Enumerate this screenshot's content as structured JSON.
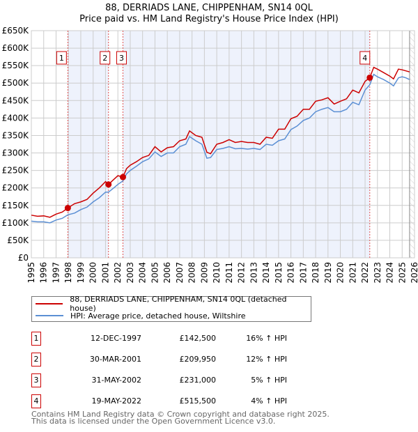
{
  "chart_data": {
    "type": "line",
    "title": "88, DERRIADS LANE, CHIPPENHAM, SN14 0QL",
    "subtitle": "Price paid vs. HM Land Registry's House Price Index (HPI)",
    "xlim": [
      1995,
      2026
    ],
    "ylim": [
      0,
      650000
    ],
    "y_ticks": [
      "£0",
      "£50K",
      "£100K",
      "£150K",
      "£200K",
      "£250K",
      "£300K",
      "£350K",
      "£400K",
      "£450K",
      "£500K",
      "£550K",
      "£600K",
      "£650K"
    ],
    "x_ticks": [
      "1995",
      "1996",
      "1997",
      "1998",
      "1999",
      "2000",
      "2001",
      "2002",
      "2003",
      "2004",
      "2005",
      "2006",
      "2007",
      "2008",
      "2009",
      "2010",
      "2011",
      "2012",
      "2013",
      "2014",
      "2015",
      "2016",
      "2017",
      "2018",
      "2019",
      "2020",
      "2021",
      "2022",
      "2023",
      "2024",
      "2025",
      "2026"
    ],
    "grid": true,
    "series": [
      {
        "name": "88, DERRIADS LANE, CHIPPENHAM, SN14 0QL (detached house)",
        "color": "#cc0000",
        "x": [
          1995,
          1995.5,
          1996,
          1996.5,
          1997,
          1997.5,
          1997.95,
          1998.5,
          1999,
          1999.5,
          2000,
          2000.5,
          2001,
          2001.24,
          2001.6,
          2002,
          2002.41,
          2002.7,
          2003,
          2003.5,
          2004,
          2004.5,
          2005,
          2005.5,
          2006,
          2006.5,
          2007,
          2007.5,
          2007.8,
          2008.3,
          2008.8,
          2009.2,
          2009.5,
          2010,
          2010.5,
          2011,
          2011.5,
          2012,
          2012.5,
          2013,
          2013.5,
          2014,
          2014.5,
          2015,
          2015.5,
          2016,
          2016.5,
          2017,
          2017.5,
          2018,
          2018.5,
          2019,
          2019.5,
          2020,
          2020.5,
          2021,
          2021.5,
          2022,
          2022.38,
          2022.7,
          2023,
          2023.5,
          2024,
          2024.3,
          2024.7,
          2025,
          2025.3,
          2025.6
        ],
        "y": [
          122000,
          119000,
          120000,
          116000,
          125000,
          131000,
          142500,
          155000,
          160000,
          167000,
          185000,
          200000,
          218000,
          209950,
          222000,
          235000,
          231000,
          255000,
          265000,
          275000,
          287000,
          293000,
          318000,
          303000,
          315000,
          318000,
          335000,
          340000,
          363000,
          350000,
          345000,
          302000,
          298000,
          325000,
          330000,
          338000,
          330000,
          333000,
          330000,
          330000,
          325000,
          345000,
          342000,
          368000,
          368000,
          398000,
          405000,
          425000,
          425000,
          448000,
          452000,
          458000,
          440000,
          448000,
          455000,
          480000,
          472000,
          505000,
          515500,
          545000,
          540000,
          530000,
          520000,
          512000,
          540000,
          538000,
          535000,
          532000
        ]
      },
      {
        "name": "HPI: Average price, detached house, Wiltshire",
        "color": "#5b8fd4",
        "x": [
          1995,
          1995.5,
          1996,
          1996.5,
          1997,
          1997.5,
          1997.95,
          1998.5,
          1999,
          1999.5,
          2000,
          2000.5,
          2001,
          2001.24,
          2001.6,
          2002,
          2002.41,
          2002.7,
          2003,
          2003.5,
          2004,
          2004.5,
          2005,
          2005.5,
          2006,
          2006.5,
          2007,
          2007.5,
          2007.8,
          2008.3,
          2008.8,
          2009.2,
          2009.5,
          2010,
          2010.5,
          2011,
          2011.5,
          2012,
          2012.5,
          2013,
          2013.5,
          2014,
          2014.5,
          2015,
          2015.5,
          2016,
          2016.5,
          2017,
          2017.5,
          2018,
          2018.5,
          2019,
          2019.5,
          2020,
          2020.5,
          2021,
          2021.5,
          2022,
          2022.38,
          2022.7,
          2023,
          2023.5,
          2024,
          2024.3,
          2024.7,
          2025,
          2025.3,
          2025.6
        ],
        "y": [
          105000,
          103000,
          103000,
          100000,
          108000,
          113000,
          123000,
          128000,
          138000,
          145000,
          160000,
          172000,
          188000,
          188000,
          198000,
          210000,
          220000,
          240000,
          250000,
          262000,
          275000,
          283000,
          303000,
          290000,
          300000,
          300000,
          318000,
          325000,
          347000,
          335000,
          325000,
          285000,
          287000,
          310000,
          313000,
          318000,
          312000,
          313000,
          311000,
          313000,
          310000,
          325000,
          322000,
          335000,
          340000,
          367000,
          377000,
          393000,
          400000,
          418000,
          425000,
          430000,
          418000,
          418000,
          425000,
          445000,
          438000,
          480000,
          495000,
          525000,
          518000,
          510000,
          500000,
          492000,
          515000,
          518000,
          515000,
          510000
        ]
      }
    ],
    "sales": [
      {
        "label": "1",
        "date": "12-DEC-1997",
        "x": 1997.95,
        "price": 142500,
        "price_text": "£142,500",
        "hpi": "16% ↑ HPI"
      },
      {
        "label": "2",
        "date": "30-MAR-2001",
        "x": 2001.24,
        "price": 209950,
        "price_text": "£209,950",
        "hpi": "12% ↑ HPI"
      },
      {
        "label": "3",
        "date": "31-MAY-2002",
        "x": 2002.41,
        "price": 231000,
        "price_text": "£231,000",
        "hpi": "5% ↑ HPI"
      },
      {
        "label": "4",
        "date": "19-MAY-2022",
        "x": 2022.38,
        "price": 515500,
        "price_text": "£515,500",
        "hpi": "4% ↑ HPI"
      }
    ],
    "data_end": 2025.6,
    "shade_color": "#eef2fc"
  },
  "footer": {
    "line1": "Contains HM Land Registry data © Crown copyright and database right 2025.",
    "line2": "This data is licensed under the Open Government Licence v3.0."
  }
}
